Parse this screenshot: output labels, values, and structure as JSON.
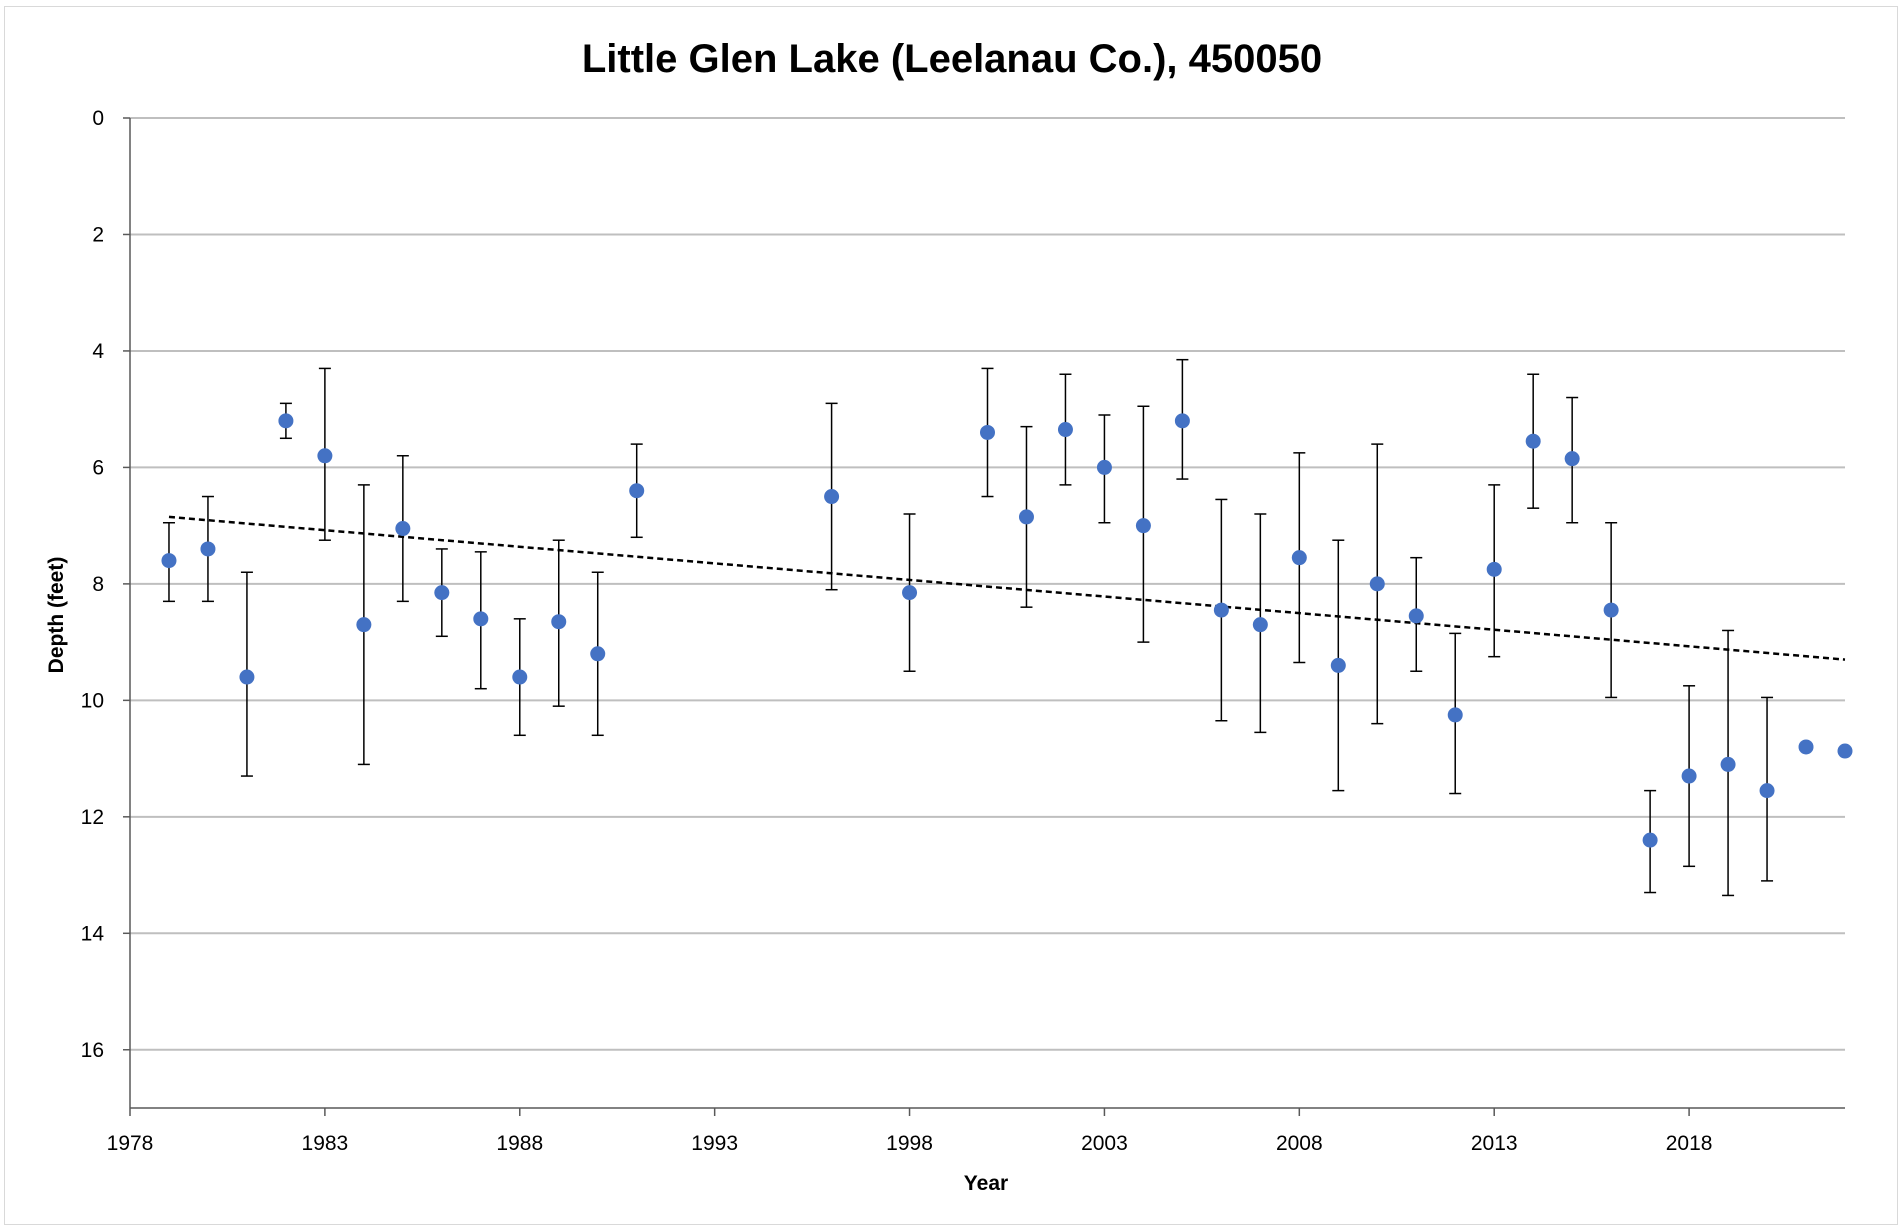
{
  "chart_data": {
    "type": "scatter",
    "title": "Little Glen Lake (Leelanau Co.), 450050",
    "xlabel": "Year",
    "ylabel": "Depth (feet)",
    "xlim": [
      1978,
      2022
    ],
    "ylim": [
      0,
      17
    ],
    "y_inverted": true,
    "x_ticks": [
      1978,
      1983,
      1988,
      1993,
      1998,
      2003,
      2008,
      2013,
      2018
    ],
    "y_ticks": [
      0,
      2,
      4,
      6,
      8,
      10,
      12,
      14,
      16
    ],
    "grid": "horizontal",
    "legend": "none",
    "colors": {
      "marker": "#4472C4",
      "error_bar": "#000000",
      "trendline": "#000000",
      "gridline": "#bfbfbf",
      "axis": "#595959"
    },
    "series": [
      {
        "x": [
          1979,
          1980,
          1981,
          1982,
          1983,
          1984,
          1985,
          1986,
          1987,
          1988,
          1989,
          1990,
          1991,
          1996,
          1998,
          2000,
          2001,
          2002,
          2003,
          2004,
          2005,
          2006,
          2007,
          2008,
          2009,
          2010,
          2011,
          2012,
          2013,
          2014,
          2015,
          2016,
          2017,
          2018,
          2019,
          2020,
          2021,
          2022
        ],
        "y": [
          7.6,
          7.4,
          9.6,
          5.2,
          5.8,
          8.7,
          7.05,
          8.15,
          8.6,
          9.6,
          8.65,
          9.2,
          6.4,
          6.5,
          8.15,
          5.4,
          6.85,
          5.35,
          6.0,
          7.0,
          5.2,
          8.45,
          8.7,
          7.55,
          9.4,
          8.0,
          8.55,
          10.25,
          7.75,
          5.55,
          5.85,
          8.45,
          12.4,
          11.3,
          11.1,
          11.55,
          10.8,
          10.87
        ],
        "y_low": [
          6.95,
          6.5,
          7.8,
          4.9,
          4.3,
          6.3,
          5.8,
          7.4,
          7.45,
          8.6,
          7.25,
          7.8,
          5.6,
          4.9,
          6.8,
          4.3,
          5.3,
          4.4,
          5.1,
          4.95,
          4.15,
          6.55,
          6.8,
          5.75,
          7.25,
          5.6,
          7.55,
          8.85,
          6.3,
          4.4,
          4.8,
          6.95,
          11.55,
          9.75,
          8.8,
          9.95,
          null,
          null
        ],
        "y_high": [
          8.3,
          8.3,
          11.3,
          5.5,
          7.25,
          11.1,
          8.3,
          8.9,
          9.8,
          10.6,
          10.1,
          10.6,
          7.2,
          8.1,
          9.5,
          6.5,
          8.4,
          6.3,
          6.95,
          9.0,
          6.2,
          10.35,
          10.55,
          9.35,
          11.55,
          10.4,
          9.5,
          11.6,
          9.25,
          6.7,
          6.95,
          9.95,
          13.3,
          12.85,
          13.35,
          13.1,
          null,
          null
        ]
      }
    ],
    "trendline": {
      "type": "linear",
      "style": "dashed",
      "x": [
        1979,
        2022
      ],
      "y": [
        6.85,
        9.3
      ]
    }
  }
}
